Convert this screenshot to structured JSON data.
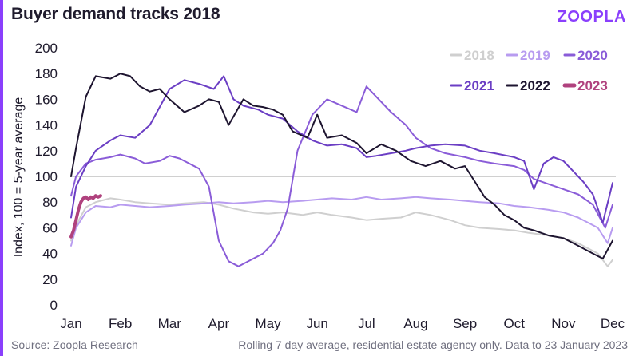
{
  "header": {
    "title": "Buyer demand tracks 2018",
    "logo": "ZOOPLA"
  },
  "footer": {
    "source": "Source: Zoopla Research",
    "note": "Rolling 7 day average, residential estate agency only. Data to 23 January 2023"
  },
  "chart_data": {
    "type": "line",
    "title": "Buyer demand tracks 2018",
    "xlabel": "",
    "ylabel": "Index, 100 = 5-year average",
    "ylim": [
      0,
      200
    ],
    "yticks": [
      0,
      20,
      40,
      60,
      80,
      100,
      120,
      140,
      160,
      180,
      200
    ],
    "reference_line": 100,
    "x_unit": "month index (0 = Jan, 11 = Dec)",
    "xlim": [
      0,
      11
    ],
    "categories": [
      "Jan",
      "Feb",
      "Mar",
      "Apr",
      "May",
      "Jun",
      "Jul",
      "Aug",
      "Sep",
      "Oct",
      "Nov",
      "Dec"
    ],
    "legend": {
      "placement": "top-right"
    },
    "series": [
      {
        "name": "2018",
        "color": "#cfcfcf",
        "width": 2,
        "x": [
          0,
          0.1,
          0.3,
          0.5,
          0.8,
          1.0,
          1.3,
          1.6,
          2.0,
          2.3,
          2.7,
          3.0,
          3.3,
          3.7,
          4.0,
          4.3,
          4.7,
          5.0,
          5.3,
          5.7,
          6.0,
          6.3,
          6.7,
          7.0,
          7.3,
          7.7,
          8.0,
          8.3,
          8.7,
          9.0,
          9.3,
          9.7,
          10.0,
          10.3,
          10.7,
          10.9,
          11.0
        ],
        "y": [
          50,
          62,
          76,
          80,
          83,
          82,
          80,
          79,
          78,
          79,
          80,
          78,
          75,
          72,
          71,
          72,
          70,
          72,
          70,
          68,
          66,
          67,
          68,
          72,
          70,
          66,
          62,
          60,
          59,
          58,
          56,
          54,
          52,
          48,
          40,
          30,
          35
        ]
      },
      {
        "name": "2019",
        "color": "#b89cf0",
        "width": 2,
        "x": [
          0,
          0.1,
          0.3,
          0.5,
          0.8,
          1.0,
          1.3,
          1.6,
          2.0,
          2.3,
          2.7,
          3.0,
          3.3,
          3.7,
          4.0,
          4.3,
          4.7,
          5.0,
          5.3,
          5.7,
          6.0,
          6.3,
          6.7,
          7.0,
          7.3,
          7.7,
          8.0,
          8.3,
          8.7,
          9.0,
          9.3,
          9.7,
          10.0,
          10.3,
          10.7,
          10.9,
          11.0
        ],
        "y": [
          46,
          60,
          72,
          77,
          76,
          78,
          77,
          76,
          77,
          78,
          79,
          80,
          79,
          80,
          81,
          80,
          81,
          82,
          83,
          82,
          84,
          82,
          83,
          84,
          83,
          82,
          81,
          80,
          79,
          77,
          76,
          74,
          72,
          68,
          60,
          48,
          60
        ]
      },
      {
        "name": "2020",
        "color": "#8a5cd8",
        "width": 2,
        "x": [
          0,
          0.1,
          0.3,
          0.5,
          0.8,
          1.0,
          1.3,
          1.5,
          1.8,
          2.0,
          2.2,
          2.4,
          2.6,
          2.8,
          3.0,
          3.2,
          3.4,
          3.6,
          3.9,
          4.1,
          4.25,
          4.4,
          4.6,
          4.9,
          5.2,
          5.5,
          5.8,
          6.0,
          6.2,
          6.5,
          6.8,
          7.0,
          7.3,
          7.6,
          8.0,
          8.3,
          8.6,
          9.0,
          9.2,
          9.4,
          9.7,
          10.0,
          10.3,
          10.6,
          10.85,
          11.0
        ],
        "y": [
          85,
          100,
          110,
          113,
          115,
          117,
          114,
          110,
          112,
          116,
          114,
          110,
          106,
          92,
          50,
          34,
          30,
          34,
          40,
          48,
          58,
          75,
          120,
          148,
          160,
          155,
          150,
          170,
          162,
          150,
          140,
          130,
          122,
          118,
          115,
          112,
          110,
          108,
          105,
          98,
          94,
          90,
          86,
          78,
          60,
          78
        ]
      },
      {
        "name": "2021",
        "color": "#6b3ec4",
        "width": 2,
        "x": [
          0,
          0.1,
          0.3,
          0.5,
          0.8,
          1.0,
          1.3,
          1.6,
          2.0,
          2.3,
          2.6,
          2.9,
          3.1,
          3.3,
          3.5,
          3.8,
          4.0,
          4.3,
          4.6,
          4.9,
          5.2,
          5.5,
          5.8,
          6.0,
          6.2,
          6.5,
          6.8,
          7.0,
          7.3,
          7.6,
          8.0,
          8.3,
          8.6,
          9.0,
          9.2,
          9.4,
          9.6,
          9.8,
          10.0,
          10.2,
          10.4,
          10.6,
          10.8,
          11.0
        ],
        "y": [
          68,
          92,
          108,
          120,
          128,
          132,
          130,
          140,
          168,
          175,
          172,
          168,
          178,
          160,
          155,
          152,
          148,
          145,
          135,
          128,
          124,
          125,
          122,
          115,
          116,
          118,
          120,
          122,
          124,
          125,
          124,
          120,
          118,
          115,
          112,
          90,
          110,
          115,
          112,
          104,
          96,
          86,
          64,
          95
        ]
      },
      {
        "name": "2022",
        "color": "#1e1530",
        "width": 2,
        "x": [
          0,
          0.1,
          0.3,
          0.5,
          0.8,
          1.0,
          1.2,
          1.4,
          1.6,
          1.8,
          2.0,
          2.3,
          2.6,
          2.8,
          3.0,
          3.2,
          3.5,
          3.7,
          3.9,
          4.1,
          4.3,
          4.5,
          4.8,
          5.0,
          5.2,
          5.5,
          5.8,
          6.0,
          6.3,
          6.6,
          6.9,
          7.2,
          7.5,
          7.8,
          8.0,
          8.2,
          8.4,
          8.6,
          8.8,
          9.0,
          9.2,
          9.4,
          9.7,
          10.0,
          10.3,
          10.6,
          10.8,
          11.0
        ],
        "y": [
          100,
          122,
          162,
          178,
          176,
          180,
          178,
          170,
          166,
          168,
          160,
          150,
          155,
          160,
          158,
          140,
          160,
          155,
          154,
          152,
          148,
          135,
          130,
          148,
          130,
          132,
          126,
          118,
          125,
          120,
          112,
          108,
          112,
          106,
          108,
          96,
          84,
          78,
          70,
          66,
          60,
          58,
          54,
          52,
          46,
          40,
          36,
          50
        ]
      },
      {
        "name": "2023",
        "color": "#b0427e",
        "width": 4,
        "x": [
          0,
          0.05,
          0.1,
          0.15,
          0.2,
          0.25,
          0.3,
          0.35,
          0.4,
          0.45,
          0.5,
          0.55,
          0.6
        ],
        "y": [
          53,
          58,
          66,
          74,
          80,
          83,
          84,
          82,
          84,
          83,
          85,
          84,
          85
        ]
      }
    ]
  }
}
